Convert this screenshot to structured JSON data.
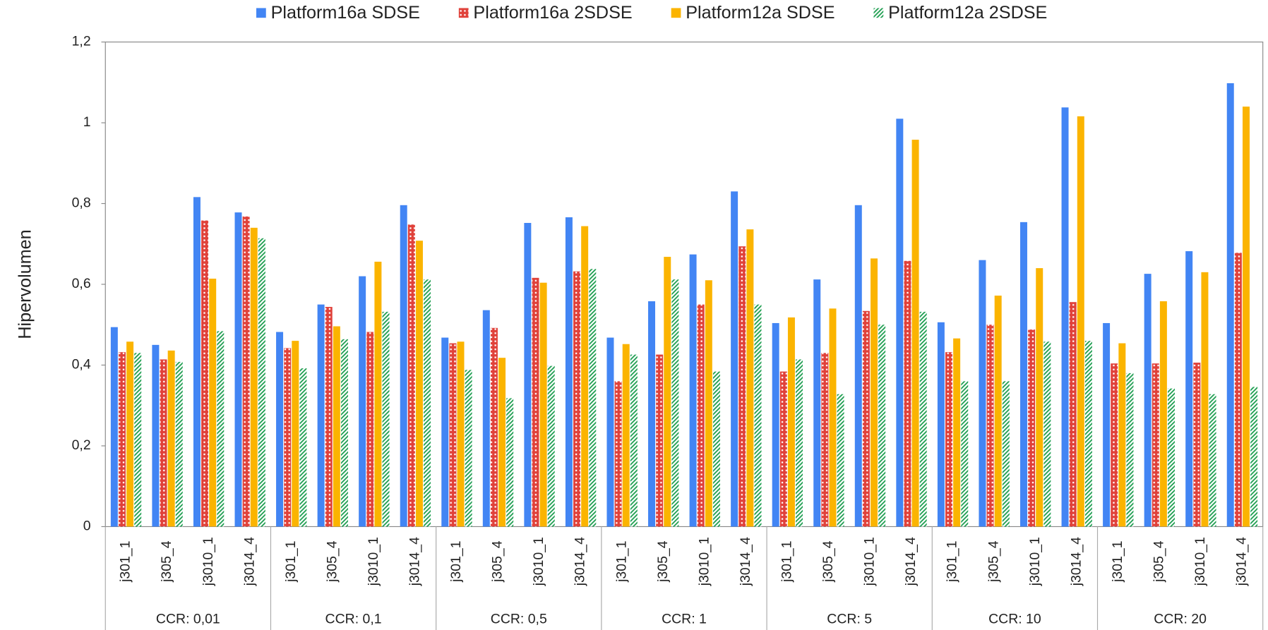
{
  "chart_data": {
    "type": "bar",
    "y_label": "Hipervolumen",
    "categories": [
      "j301_1",
      "j305_4",
      "j3010_1",
      "j3014_4",
      "j301_1",
      "j305_4",
      "j3010_1",
      "j3014_4",
      "j301_1",
      "j305_4",
      "j3010_1",
      "j3014_4",
      "j301_1",
      "j305_4",
      "j3010_1",
      "j3014_4",
      "j301_1",
      "j305_4",
      "j3010_1",
      "j3014_4",
      "j301_1",
      "j305_4",
      "j3010_1",
      "j3014_4",
      "j301_1",
      "j305_4",
      "j3010_1",
      "j3014_4"
    ],
    "groups": [
      "CCR: 0,01",
      "CCR: 0,1",
      "CCR: 0,5",
      "CCR: 1",
      "CCR: 5",
      "CCR: 10",
      "CCR: 20"
    ],
    "series": [
      {
        "name": "Platform16a SDSE",
        "color": "#4285f4",
        "pattern": "solid",
        "values": [
          0.494,
          0.45,
          0.816,
          0.778,
          0.482,
          0.55,
          0.62,
          0.796,
          0.468,
          0.536,
          0.752,
          0.766,
          0.468,
          0.558,
          0.674,
          0.83,
          0.504,
          0.612,
          0.796,
          1.01,
          0.506,
          0.66,
          0.754,
          1.038,
          0.504,
          0.626,
          0.682,
          1.098
        ]
      },
      {
        "name": "Platform16a 2SDSE",
        "color": "#e0413a",
        "pattern": "dots",
        "values": [
          0.432,
          0.414,
          0.758,
          0.768,
          0.442,
          0.544,
          0.482,
          0.748,
          0.454,
          0.492,
          0.616,
          0.632,
          0.36,
          0.426,
          0.55,
          0.694,
          0.384,
          0.43,
          0.534,
          0.658,
          0.432,
          0.5,
          0.488,
          0.556,
          0.404,
          0.404,
          0.406,
          0.678
        ]
      },
      {
        "name": "Platform12a SDSE",
        "color": "#fbb400",
        "pattern": "solid",
        "values": [
          0.458,
          0.436,
          0.614,
          0.74,
          0.46,
          0.496,
          0.656,
          0.708,
          0.458,
          0.418,
          0.604,
          0.744,
          0.452,
          0.668,
          0.61,
          0.736,
          0.518,
          0.54,
          0.664,
          0.958,
          0.466,
          0.572,
          0.64,
          1.016,
          0.454,
          0.558,
          0.63,
          1.04
        ]
      },
      {
        "name": "Platform12a 2SDSE",
        "color": "#1e9e50",
        "pattern": "hatch",
        "values": [
          0.43,
          0.408,
          0.484,
          0.714,
          0.392,
          0.464,
          0.532,
          0.612,
          0.388,
          0.318,
          0.398,
          0.638,
          0.426,
          0.612,
          0.384,
          0.55,
          0.414,
          0.328,
          0.5,
          0.532,
          0.36,
          0.36,
          0.458,
          0.46,
          0.38,
          0.342,
          0.328,
          0.346
        ]
      }
    ],
    "ylim": [
      0,
      1.2
    ],
    "yticks": [
      0,
      {
        "value": 0.2,
        "label": "0,2"
      },
      {
        "value": 0.4,
        "label": "0,4"
      },
      {
        "value": 0.6,
        "label": "0,6"
      },
      {
        "value": 0.8,
        "label": "0,8"
      },
      1,
      {
        "value": 1.2,
        "label": "1,2"
      }
    ],
    "legend": "top"
  }
}
